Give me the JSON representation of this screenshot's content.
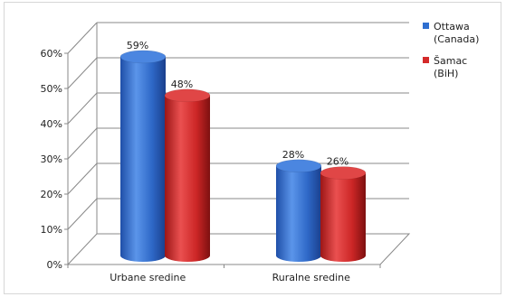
{
  "chart_data": {
    "type": "bar",
    "style": "3d-cylinder",
    "categories": [
      "Urbane sredine",
      "Ruralne sredine"
    ],
    "series": [
      {
        "name": "Ottawa (Canada)",
        "legend_lines": [
          "Ottawa",
          "(Canada)"
        ],
        "values": [
          59,
          28
        ],
        "labels": [
          "59%",
          "28%"
        ],
        "color": "#2f6fd0"
      },
      {
        "name": "Šamac (BiH)",
        "legend_lines": [
          "Šamac",
          "(BiH)"
        ],
        "values": [
          48,
          26
        ],
        "labels": [
          "48%",
          "26%"
        ],
        "color": "#d42a2a"
      }
    ],
    "ylim": [
      0,
      60
    ],
    "yticks": [
      0,
      10,
      20,
      30,
      40,
      50,
      60
    ],
    "ytick_labels": [
      "0%",
      "10%",
      "20%",
      "30%",
      "40%",
      "50%",
      "60%"
    ],
    "grid": true,
    "legend_position": "right",
    "title": "",
    "xlabel": "",
    "ylabel": ""
  }
}
